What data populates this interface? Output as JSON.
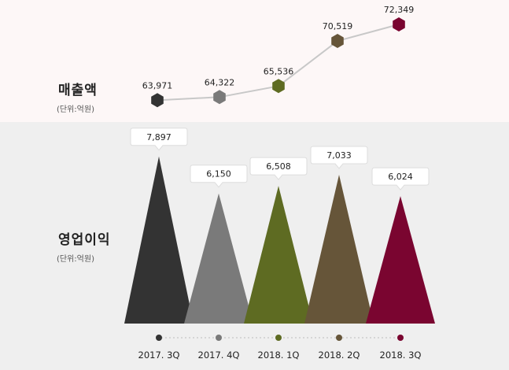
{
  "chart_data": [
    {
      "type": "line",
      "title": "매출액",
      "unit": "(단위:억원)",
      "categories": [
        "2017. 3Q",
        "2017. 4Q",
        "2018. 1Q",
        "2018. 2Q",
        "2018. 3Q"
      ],
      "values": [
        63971,
        64322,
        65536,
        70519,
        72349
      ],
      "value_labels": [
        "63,971",
        "64,322",
        "65,536",
        "70,519",
        "72,349"
      ],
      "ylim": [
        62000,
        74000
      ],
      "line_color": "#c8c8c8",
      "marker": "hexagon",
      "colors": [
        "#333333",
        "#7a7a7a",
        "#5e6b22",
        "#665539",
        "#7a0530"
      ]
    },
    {
      "type": "bar",
      "title": "영업이익",
      "unit": "(단위:억원)",
      "categories": [
        "2017. 3Q",
        "2017. 4Q",
        "2018. 1Q",
        "2018. 2Q",
        "2018. 3Q"
      ],
      "values": [
        7897,
        6150,
        6508,
        7033,
        6024
      ],
      "value_labels": [
        "7,897",
        "6,150",
        "6,508",
        "7,033",
        "6,024"
      ],
      "ylim": [
        0,
        8000
      ],
      "bar_shape": "triangle",
      "colors": [
        "#333333",
        "#7a7a7a",
        "#5e6b22",
        "#665539",
        "#7a0530"
      ]
    }
  ]
}
